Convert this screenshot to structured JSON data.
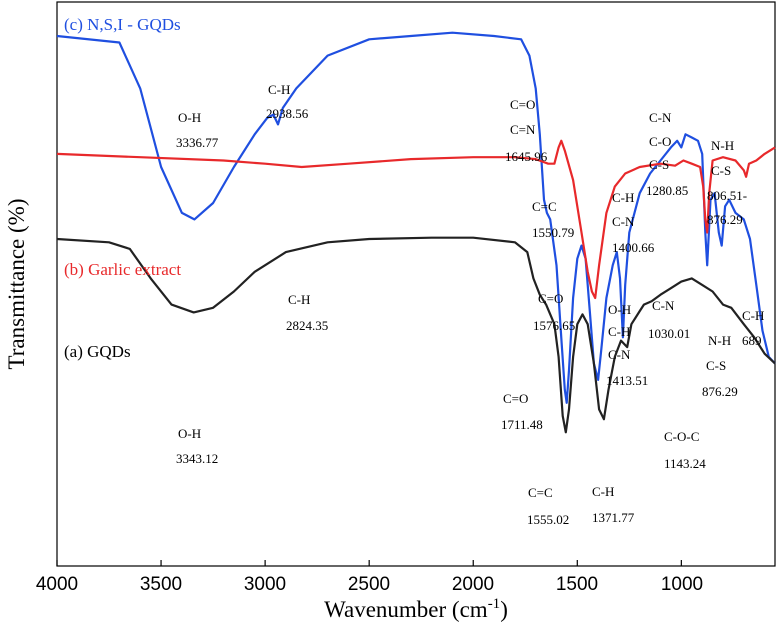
{
  "chart_data": {
    "type": "line",
    "xlabel": "Wavenumber (cm",
    "xlabel_sup": "-1",
    "xlabel_close": ")",
    "ylabel": "Transmittance (%)",
    "xlim": [
      4000,
      550
    ],
    "x_ticks": [
      "4000",
      "3500",
      "3000",
      "2500",
      "2000",
      "1500",
      "1000"
    ],
    "colors": {
      "c": "#1f4fe0",
      "b": "#e8292b",
      "a": "#222222"
    },
    "series": [
      {
        "key": "c",
        "name": "(c) N,S,I - GQDs",
        "values": [
          [
            4000,
            8.0
          ],
          [
            3700,
            7.9
          ],
          [
            3600,
            7.2
          ],
          [
            3500,
            6.0
          ],
          [
            3400,
            5.3
          ],
          [
            3340,
            5.2
          ],
          [
            3250,
            5.45
          ],
          [
            3150,
            6.0
          ],
          [
            3050,
            6.5
          ],
          [
            2990,
            6.75
          ],
          [
            2960,
            6.8
          ],
          [
            2938,
            6.65
          ],
          [
            2915,
            6.9
          ],
          [
            2850,
            7.2
          ],
          [
            2700,
            7.7
          ],
          [
            2500,
            7.95
          ],
          [
            2300,
            8.0
          ],
          [
            2100,
            8.05
          ],
          [
            1900,
            8.0
          ],
          [
            1770,
            7.95
          ],
          [
            1730,
            7.7
          ],
          [
            1700,
            7.2
          ],
          [
            1680,
            6.5
          ],
          [
            1660,
            5.5
          ],
          [
            1646,
            5.3
          ],
          [
            1630,
            5.2
          ],
          [
            1600,
            4.5
          ],
          [
            1575,
            3.3
          ],
          [
            1560,
            2.6
          ],
          [
            1551,
            2.4
          ],
          [
            1540,
            2.9
          ],
          [
            1520,
            4.0
          ],
          [
            1500,
            4.6
          ],
          [
            1480,
            4.8
          ],
          [
            1460,
            4.6
          ],
          [
            1440,
            3.8
          ],
          [
            1420,
            3.0
          ],
          [
            1400,
            2.75
          ],
          [
            1385,
            3.2
          ],
          [
            1360,
            4.0
          ],
          [
            1330,
            4.5
          ],
          [
            1310,
            4.7
          ],
          [
            1295,
            4.3
          ],
          [
            1281,
            3.4
          ],
          [
            1270,
            4.2
          ],
          [
            1250,
            5.0
          ],
          [
            1200,
            5.6
          ],
          [
            1150,
            5.9
          ],
          [
            1100,
            6.1
          ],
          [
            1050,
            6.3
          ],
          [
            1020,
            6.4
          ],
          [
            1000,
            6.3
          ],
          [
            980,
            6.5
          ],
          [
            950,
            6.45
          ],
          [
            920,
            6.4
          ],
          [
            900,
            6.2
          ],
          [
            885,
            5.0
          ],
          [
            876,
            4.5
          ],
          [
            860,
            5.5
          ],
          [
            840,
            5.6
          ],
          [
            820,
            5.0
          ],
          [
            806,
            4.8
          ],
          [
            790,
            5.4
          ],
          [
            770,
            5.5
          ],
          [
            740,
            5.3
          ],
          [
            700,
            5.2
          ],
          [
            670,
            4.9
          ],
          [
            640,
            4.2
          ],
          [
            610,
            3.5
          ],
          [
            580,
            3.1
          ],
          [
            550,
            3.0
          ]
        ]
      },
      {
        "key": "b",
        "name": "(b) Garlic extract",
        "values": [
          [
            4000,
            6.2
          ],
          [
            3600,
            6.15
          ],
          [
            3200,
            6.1
          ],
          [
            3000,
            6.05
          ],
          [
            2824,
            6.0
          ],
          [
            2600,
            6.05
          ],
          [
            2300,
            6.12
          ],
          [
            2000,
            6.15
          ],
          [
            1800,
            6.15
          ],
          [
            1700,
            6.12
          ],
          [
            1640,
            6.05
          ],
          [
            1610,
            6.05
          ],
          [
            1590,
            6.3
          ],
          [
            1577,
            6.4
          ],
          [
            1560,
            6.25
          ],
          [
            1520,
            5.8
          ],
          [
            1480,
            5.0
          ],
          [
            1450,
            4.4
          ],
          [
            1430,
            4.1
          ],
          [
            1414,
            4.0
          ],
          [
            1395,
            4.5
          ],
          [
            1360,
            5.3
          ],
          [
            1320,
            5.7
          ],
          [
            1270,
            5.9
          ],
          [
            1200,
            6.0
          ],
          [
            1100,
            6.05
          ],
          [
            1030,
            6.02
          ],
          [
            990,
            6.1
          ],
          [
            950,
            6.05
          ],
          [
            910,
            6.0
          ],
          [
            895,
            5.7
          ],
          [
            885,
            5.2
          ],
          [
            876,
            5.0
          ],
          [
            866,
            5.6
          ],
          [
            850,
            6.1
          ],
          [
            800,
            6.15
          ],
          [
            740,
            6.1
          ],
          [
            700,
            5.95
          ],
          [
            689,
            5.85
          ],
          [
            675,
            6.05
          ],
          [
            640,
            6.1
          ],
          [
            600,
            6.2
          ],
          [
            550,
            6.3
          ]
        ]
      },
      {
        "key": "a",
        "name": "(a) GQDs",
        "values": [
          [
            4000,
            4.9
          ],
          [
            3750,
            4.85
          ],
          [
            3650,
            4.75
          ],
          [
            3550,
            4.3
          ],
          [
            3450,
            3.9
          ],
          [
            3343,
            3.78
          ],
          [
            3250,
            3.85
          ],
          [
            3150,
            4.1
          ],
          [
            3050,
            4.4
          ],
          [
            2900,
            4.7
          ],
          [
            2700,
            4.85
          ],
          [
            2500,
            4.9
          ],
          [
            2200,
            4.92
          ],
          [
            2000,
            4.92
          ],
          [
            1800,
            4.85
          ],
          [
            1740,
            4.7
          ],
          [
            1711,
            4.3
          ],
          [
            1680,
            4.05
          ],
          [
            1650,
            3.9
          ],
          [
            1610,
            3.6
          ],
          [
            1590,
            3.1
          ],
          [
            1570,
            2.2
          ],
          [
            1555,
            1.95
          ],
          [
            1540,
            2.3
          ],
          [
            1520,
            3.1
          ],
          [
            1500,
            3.6
          ],
          [
            1475,
            3.75
          ],
          [
            1450,
            3.6
          ],
          [
            1420,
            3.0
          ],
          [
            1395,
            2.3
          ],
          [
            1372,
            2.15
          ],
          [
            1350,
            2.6
          ],
          [
            1320,
            3.1
          ],
          [
            1290,
            3.35
          ],
          [
            1260,
            3.25
          ],
          [
            1240,
            3.6
          ],
          [
            1200,
            3.8
          ],
          [
            1180,
            3.9
          ],
          [
            1143,
            3.95
          ],
          [
            1100,
            4.05
          ],
          [
            1050,
            4.15
          ],
          [
            1000,
            4.25
          ],
          [
            950,
            4.3
          ],
          [
            900,
            4.2
          ],
          [
            850,
            4.1
          ],
          [
            800,
            3.9
          ],
          [
            760,
            3.85
          ],
          [
            700,
            3.6
          ],
          [
            650,
            3.4
          ],
          [
            600,
            3.15
          ],
          [
            550,
            3.0
          ]
        ]
      }
    ],
    "annotations": {
      "c": [
        [
          "O-H",
          "3336.77"
        ],
        [
          "C-H",
          "2938.56"
        ],
        [
          "C=O",
          "C=N",
          "1645.96"
        ],
        [
          "C=C",
          "1550.79"
        ],
        [
          "C-H",
          "C-N",
          "1400.66"
        ],
        [
          "C-N",
          "C-O",
          "C-S",
          "1280.85"
        ],
        [
          "N-H",
          "C-S",
          "806.51-",
          "876.29"
        ]
      ],
      "b": [
        [
          "C-H",
          "2824.35"
        ],
        [
          "C=O",
          "1576.65"
        ],
        [
          "O-H",
          "C-H",
          "C-N",
          "1413.51"
        ],
        [
          "C-N",
          "1030.01"
        ],
        [
          "N-H",
          "C-S",
          "876.29"
        ],
        [
          "C-H",
          "689"
        ]
      ],
      "a": [
        [
          "O-H",
          "3343.12"
        ],
        [
          "C=O",
          "1711.48"
        ],
        [
          "C=C",
          "1555.02"
        ],
        [
          "C-H",
          "1371.77"
        ],
        [
          "C-O-C",
          "1143.24"
        ]
      ]
    }
  }
}
